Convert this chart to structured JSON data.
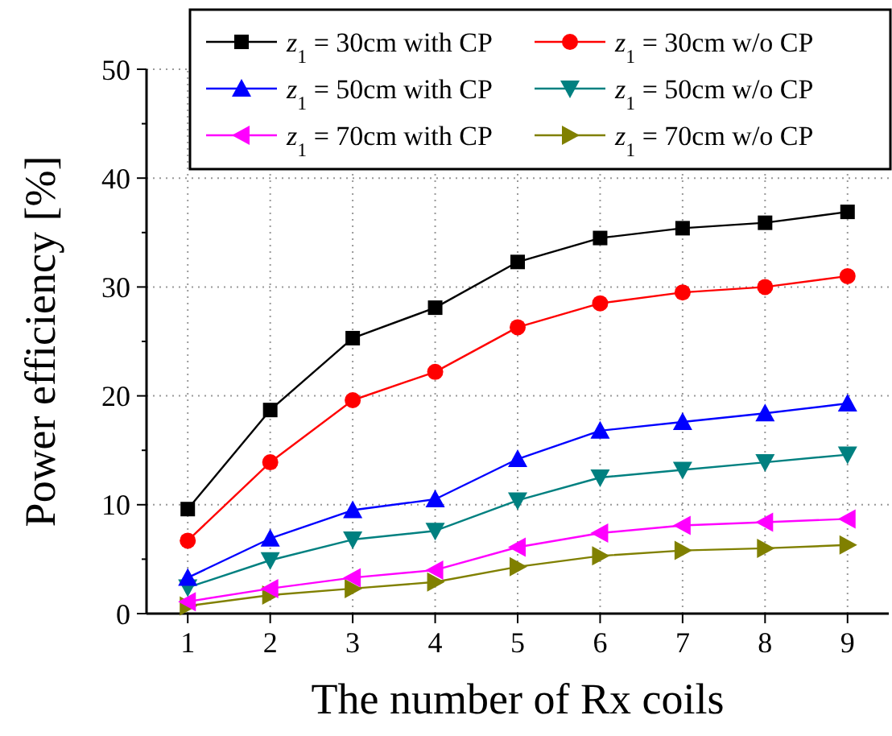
{
  "chart_data": {
    "type": "line",
    "xlabel": "The number of Rx coils",
    "ylabel": "Power efficiency [%]",
    "x": [
      1,
      2,
      3,
      4,
      5,
      6,
      7,
      8,
      9
    ],
    "xlim": [
      0.5,
      9.5
    ],
    "xticks": [
      1,
      2,
      3,
      4,
      5,
      6,
      7,
      8,
      9
    ],
    "ylim": [
      0,
      50
    ],
    "yticks": [
      0,
      10,
      20,
      30,
      40,
      50
    ],
    "grid": true,
    "legend": "top",
    "line_style": "solid",
    "series": [
      {
        "name": "z$_{1}$ = 30cm with CP",
        "color": "#000000",
        "marker": "square",
        "values": [
          9.6,
          18.7,
          25.3,
          28.1,
          32.3,
          34.5,
          35.4,
          35.9,
          36.9
        ]
      },
      {
        "name": "z$_{1}$ = 30cm w/o CP",
        "color": "#ff0000",
        "marker": "circle",
        "values": [
          6.7,
          13.9,
          19.6,
          22.2,
          26.3,
          28.5,
          29.5,
          30,
          31
        ]
      },
      {
        "name": "z$_{1}$ = 50cm with CP",
        "color": "#0000ff",
        "marker": "triangle",
        "values": [
          3.3,
          6.9,
          9.5,
          10.5,
          14.2,
          16.8,
          17.6,
          18.4,
          19.3
        ]
      },
      {
        "name": "z$_{1}$ = 50cm w/o CP",
        "color": "#008080",
        "marker": "triangle-down",
        "values": [
          2.4,
          4.9,
          6.8,
          7.6,
          10.4,
          12.5,
          13.2,
          13.9,
          14.6
        ]
      },
      {
        "name": "z$_{1}$ = 70cm with CP",
        "color": "#ff00ff",
        "marker": "triangle-left",
        "values": [
          1.1,
          2.3,
          3.3,
          4,
          6.1,
          7.4,
          8.1,
          8.4,
          8.7
        ]
      },
      {
        "name": "z$_{1}$ = 70cm w/o CP",
        "color": "#808000",
        "marker": "triangle-right",
        "values": [
          0.7,
          1.7,
          2.3,
          2.9,
          4.3,
          5.3,
          5.8,
          6,
          6.3
        ]
      }
    ]
  }
}
